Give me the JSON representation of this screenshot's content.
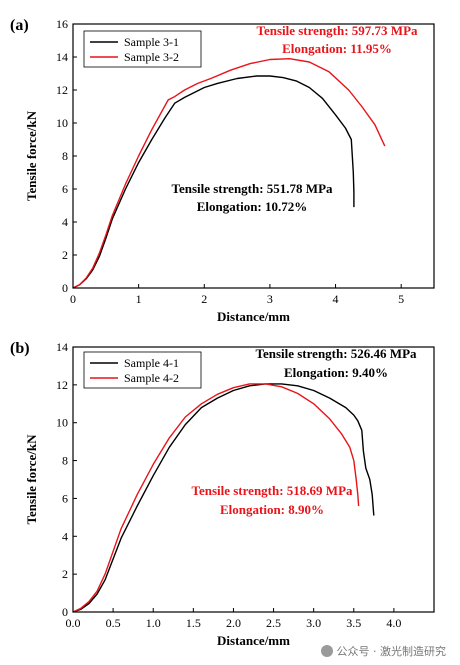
{
  "chart_data": [
    {
      "type": "line",
      "panel_label": "(a)",
      "xlabel": "Distance/mm",
      "ylabel": "Tensile force/kN",
      "xlim": [
        0,
        5.5
      ],
      "ylim": [
        0,
        16
      ],
      "xticks": [
        0,
        1,
        2,
        3,
        4,
        5
      ],
      "xtick_labels": [
        "0",
        "1",
        "2",
        "3",
        "4",
        "5"
      ],
      "yticks": [
        0,
        2,
        4,
        6,
        8,
        10,
        12,
        14,
        16
      ],
      "ytick_labels": [
        "0",
        "2",
        "4",
        "6",
        "8",
        "10",
        "12",
        "14",
        "16"
      ],
      "grid": false,
      "legend_position": "top-left",
      "series": [
        {
          "name": "Sample 3-1",
          "color": "#000000",
          "x": [
            0,
            0.1,
            0.2,
            0.3,
            0.4,
            0.5,
            0.6,
            0.8,
            1.0,
            1.2,
            1.4,
            1.55,
            1.7,
            1.8,
            2.0,
            2.2,
            2.5,
            2.8,
            3.0,
            3.2,
            3.4,
            3.6,
            3.8,
            4.0,
            4.15,
            4.24,
            4.27,
            4.28,
            4.28
          ],
          "y": [
            0,
            0.2,
            0.55,
            1.1,
            1.9,
            3.0,
            4.2,
            6.0,
            7.6,
            9.0,
            10.3,
            11.2,
            11.55,
            11.75,
            12.15,
            12.4,
            12.7,
            12.85,
            12.85,
            12.75,
            12.55,
            12.15,
            11.5,
            10.5,
            9.7,
            9.0,
            7.0,
            5.8,
            4.9
          ]
        },
        {
          "name": "Sample 3-2",
          "color": "#e8141a",
          "x": [
            0,
            0.1,
            0.2,
            0.3,
            0.4,
            0.5,
            0.6,
            0.8,
            1.0,
            1.2,
            1.45,
            1.55,
            1.7,
            1.9,
            2.1,
            2.4,
            2.7,
            3.0,
            3.3,
            3.6,
            3.9,
            4.2,
            4.4,
            4.6,
            4.75
          ],
          "y": [
            0,
            0.2,
            0.6,
            1.2,
            2.1,
            3.2,
            4.4,
            6.3,
            8.0,
            9.6,
            11.4,
            11.6,
            12.0,
            12.4,
            12.7,
            13.2,
            13.6,
            13.85,
            13.9,
            13.7,
            13.1,
            12.0,
            11.0,
            9.9,
            8.6
          ]
        }
      ],
      "annotations": [
        {
          "text": "Tensile strength: 597.73 MPa",
          "color": "#e8141a"
        },
        {
          "text": "Elongation: 11.95%",
          "color": "#e8141a"
        },
        {
          "text": "Tensile strength: 551.78 MPa",
          "color": "#000000"
        },
        {
          "text": "Elongation: 10.72%",
          "color": "#000000"
        }
      ]
    },
    {
      "type": "line",
      "panel_label": "(b)",
      "xlabel": "Distance/mm",
      "ylabel": "Tensile force/kN",
      "xlim": [
        0,
        4.5
      ],
      "ylim": [
        0,
        14
      ],
      "xticks": [
        0,
        0.5,
        1.0,
        1.5,
        2.0,
        2.5,
        3.0,
        3.5,
        4.0
      ],
      "xtick_labels": [
        "0.0",
        "0.5",
        "1.0",
        "1.5",
        "2.0",
        "2.5",
        "3.0",
        "3.5",
        "4.0"
      ],
      "yticks": [
        0,
        2,
        4,
        6,
        8,
        10,
        12,
        14
      ],
      "ytick_labels": [
        "0",
        "2",
        "4",
        "6",
        "8",
        "10",
        "12",
        "14"
      ],
      "grid": false,
      "legend_position": "top-left",
      "series": [
        {
          "name": "Sample 4-1",
          "color": "#000000",
          "x": [
            0,
            0.1,
            0.2,
            0.3,
            0.4,
            0.5,
            0.6,
            0.8,
            1.0,
            1.2,
            1.4,
            1.6,
            1.8,
            2.0,
            2.2,
            2.4,
            2.6,
            2.8,
            3.0,
            3.2,
            3.4,
            3.5,
            3.55,
            3.6,
            3.62,
            3.65,
            3.7,
            3.73,
            3.75
          ],
          "y": [
            0,
            0.15,
            0.45,
            0.95,
            1.7,
            2.8,
            3.9,
            5.6,
            7.2,
            8.7,
            9.9,
            10.8,
            11.3,
            11.7,
            11.95,
            12.05,
            12.05,
            11.95,
            11.7,
            11.3,
            10.8,
            10.4,
            10.1,
            9.6,
            8.5,
            7.6,
            7.0,
            6.2,
            5.1
          ]
        },
        {
          "name": "Sample 4-2",
          "color": "#e8141a",
          "x": [
            0,
            0.1,
            0.2,
            0.3,
            0.4,
            0.5,
            0.6,
            0.8,
            1.0,
            1.2,
            1.4,
            1.6,
            1.8,
            2.0,
            2.2,
            2.4,
            2.6,
            2.8,
            3.0,
            3.2,
            3.35,
            3.45,
            3.5,
            3.53,
            3.55,
            3.56
          ],
          "y": [
            0,
            0.2,
            0.55,
            1.1,
            2.0,
            3.2,
            4.4,
            6.2,
            7.8,
            9.2,
            10.3,
            11.0,
            11.5,
            11.85,
            12.05,
            12.05,
            11.9,
            11.55,
            11.0,
            10.2,
            9.4,
            8.7,
            8.0,
            7.0,
            6.2,
            5.6
          ]
        }
      ],
      "annotations": [
        {
          "text": "Tensile strength: 526.46 MPa",
          "color": "#000000"
        },
        {
          "text": "Elongation: 9.40%",
          "color": "#000000"
        },
        {
          "text": "Tensile strength: 518.69 MPa",
          "color": "#e8141a"
        },
        {
          "text": "Elongation: 8.90%",
          "color": "#e8141a"
        }
      ]
    }
  ],
  "watermark": {
    "icon": "wechat-icon",
    "text": "公众号 · 激光制造研究"
  }
}
